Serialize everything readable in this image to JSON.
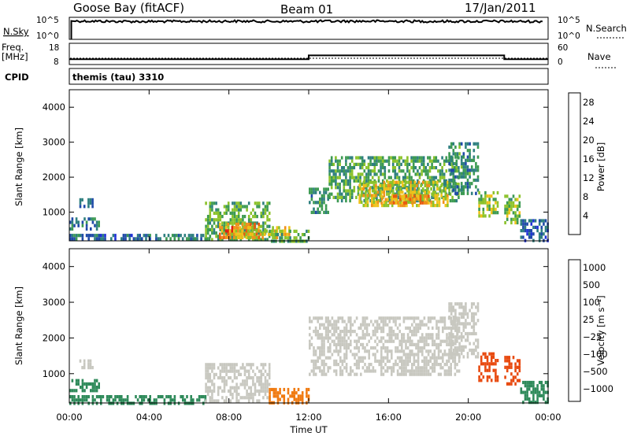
{
  "header": {
    "station": "Goose Bay (fitACF)",
    "beam": "Beam 01",
    "date": "17/Jan/2011"
  },
  "summary_panels": {
    "nsky_label": "N.Sky",
    "nsearch_label": "N.Search",
    "freq_label_1": "Freq.",
    "freq_label_2": "[MHz]",
    "nave_label": "Nave",
    "cpid_label": "CPID",
    "cpid_value": "themis (tau) 3310",
    "noise_ticks": [
      "10^5",
      "10^0"
    ],
    "noise_ticks_right": [
      "10^5",
      "10^0"
    ],
    "freq_ticks": [
      "18",
      "8"
    ],
    "nave_ticks": [
      "60",
      "0"
    ]
  },
  "colors": {
    "power_scale": [
      "#1f2fd8",
      "#1f4aa8",
      "#2e7f7f",
      "#3c9a52",
      "#8bc22a",
      "#f0c21a",
      "#f0901a",
      "#e85a10",
      "#e01a10"
    ],
    "velocity_scale": [
      "#1a2fa8",
      "#2a5aa8",
      "#2e8a5a",
      "#5cbf38",
      "#c8c8c0",
      "#c8c8c0",
      "#f0a020",
      "#f07a10",
      "#e84a10",
      "#e01a10"
    ],
    "grey": "#c8c8c0"
  },
  "chart_data": [
    {
      "type": "line",
      "panel": "noise",
      "series": [
        {
          "name": "N.Sky",
          "x": [
            0,
            0.2,
            2,
            4,
            6,
            8,
            10,
            12,
            14,
            16,
            18,
            20,
            22,
            24
          ],
          "y": [
            1,
            15000,
            12000,
            11000,
            12000,
            13000,
            12000,
            12000,
            13000,
            13000,
            12000,
            12000,
            12000,
            11000
          ]
        }
      ],
      "ylim": [
        1,
        100000
      ],
      "scale": "log"
    },
    {
      "type": "line",
      "panel": "frequency",
      "series": [
        {
          "name": "Freq.",
          "x": [
            0,
            12,
            12,
            21.8,
            21.8,
            24
          ],
          "y": [
            10.5,
            10.5,
            12.3,
            12.3,
            10.5,
            10.5
          ]
        }
      ],
      "ylim": [
        8,
        18
      ]
    },
    {
      "type": "heatmap",
      "panel": "power",
      "xlabel": "",
      "ylabel": "Slant Range [km]",
      "xlim": [
        0,
        24
      ],
      "ylim": [
        180,
        4500
      ],
      "yticks": [
        1000,
        2000,
        3000,
        4000
      ],
      "colorbar": {
        "label": "Power [dB]",
        "ticks": [
          4,
          8,
          12,
          16,
          20,
          24,
          28
        ],
        "range": [
          0,
          30
        ]
      },
      "regions": [
        {
          "t0": 0.5,
          "t1": 1.2,
          "r0": 1200,
          "r1": 1400,
          "value": 6
        },
        {
          "t0": 0.0,
          "t1": 1.5,
          "r0": 500,
          "r1": 850,
          "value": 8
        },
        {
          "t0": 0.0,
          "t1": 4.0,
          "r0": 200,
          "r1": 380,
          "value": 7
        },
        {
          "t0": 4.0,
          "t1": 7.0,
          "r0": 200,
          "r1": 380,
          "value": 8
        },
        {
          "t0": 6.8,
          "t1": 10.0,
          "r0": 200,
          "r1": 1300,
          "value": 13
        },
        {
          "t0": 7.5,
          "t1": 9.5,
          "r0": 250,
          "r1": 700,
          "value": 24
        },
        {
          "t0": 8.0,
          "t1": 11.0,
          "r0": 300,
          "r1": 600,
          "value": 18
        },
        {
          "t0": 10.0,
          "t1": 12.0,
          "r0": 200,
          "r1": 500,
          "value": 12
        },
        {
          "t0": 12.0,
          "t1": 13.0,
          "r0": 1000,
          "r1": 1700,
          "value": 10
        },
        {
          "t0": 13.0,
          "t1": 19.5,
          "r0": 1300,
          "r1": 2600,
          "value": 12
        },
        {
          "t0": 14.5,
          "t1": 19.0,
          "r0": 1200,
          "r1": 1900,
          "value": 18
        },
        {
          "t0": 15.5,
          "t1": 18.0,
          "r0": 1250,
          "r1": 1500,
          "value": 22
        },
        {
          "t0": 19.0,
          "t1": 20.5,
          "r0": 1500,
          "r1": 3000,
          "value": 10
        },
        {
          "t0": 20.5,
          "t1": 21.5,
          "r0": 850,
          "r1": 1600,
          "value": 16
        },
        {
          "t0": 21.8,
          "t1": 22.6,
          "r0": 700,
          "r1": 1500,
          "value": 14
        },
        {
          "t0": 22.6,
          "t1": 24.0,
          "r0": 200,
          "r1": 800,
          "value": 6
        }
      ]
    },
    {
      "type": "heatmap",
      "panel": "velocity",
      "xlabel": "Time UT",
      "ylabel": "Slant Range [km]",
      "xlim": [
        0,
        24
      ],
      "ylim": [
        180,
        4500
      ],
      "xticks": [
        "00:00",
        "04:00",
        "08:00",
        "12:00",
        "16:00",
        "20:00",
        "00:00"
      ],
      "yticks": [
        1000,
        2000,
        3000,
        4000
      ],
      "colorbar": {
        "label": "Velocity [m s⁻¹]",
        "ticks": [
          "1000",
          "500",
          "100",
          "25",
          "−25",
          "−100",
          "−500",
          "−1000"
        ],
        "range": [
          -1000,
          1000
        ]
      },
      "regions": [
        {
          "t0": 0.5,
          "t1": 1.2,
          "r0": 1200,
          "r1": 1400,
          "value": 0
        },
        {
          "t0": 0.0,
          "t1": 1.5,
          "r0": 500,
          "r1": 850,
          "value": 60
        },
        {
          "t0": 0.0,
          "t1": 6.8,
          "r0": 200,
          "r1": 400,
          "value": 60
        },
        {
          "t0": 6.8,
          "t1": 10.0,
          "r0": 200,
          "r1": 1300,
          "value": 0
        },
        {
          "t0": 10.0,
          "t1": 12.0,
          "r0": 200,
          "r1": 600,
          "value": -80
        },
        {
          "t0": 12.0,
          "t1": 19.5,
          "r0": 1000,
          "r1": 2600,
          "value": 0
        },
        {
          "t0": 19.0,
          "t1": 20.5,
          "r0": 1500,
          "r1": 3000,
          "value": 0
        },
        {
          "t0": 20.5,
          "t1": 21.5,
          "r0": 850,
          "r1": 1600,
          "value": -150
        },
        {
          "t0": 21.8,
          "t1": 22.6,
          "r0": 700,
          "r1": 1500,
          "value": -200
        },
        {
          "t0": 22.6,
          "t1": 24.0,
          "r0": 200,
          "r1": 800,
          "value": 80
        }
      ]
    }
  ]
}
